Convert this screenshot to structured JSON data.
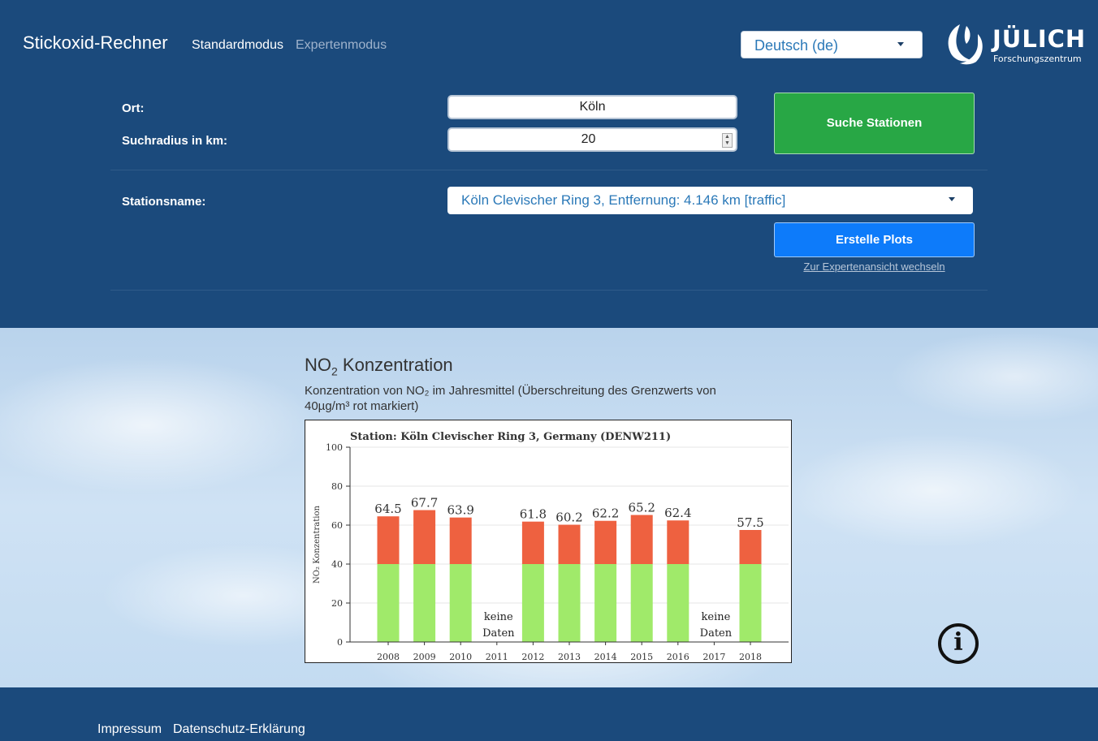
{
  "header": {
    "brand": "Stickoxid-Rechner",
    "nav": {
      "standard": "Standardmodus",
      "expert": "Expertenmodus"
    },
    "language": "Deutsch (de)",
    "logo": {
      "name": "JÜLICH",
      "subtitle": "Forschungszentrum"
    }
  },
  "form": {
    "location_label": "Ort:",
    "location_value": "Köln",
    "radius_label": "Suchradius in km:",
    "radius_value": "20",
    "search_button": "Suche Stationen",
    "station_label": "Stationsname:",
    "station_value": "Köln Clevischer Ring 3, Entfernung: 4.146 km [traffic]",
    "plot_button": "Erstelle Plots",
    "expert_link": "Zur Expertenansicht wechseln"
  },
  "section": {
    "title_main": "NO",
    "title_sub": "2",
    "title_rest": " Konzentration",
    "description": "Konzentration von NO₂ im Jahresmittel (Überschreitung des Grenzwerts von 40µg/m³ rot markiert)"
  },
  "chart_data": {
    "type": "bar",
    "title": "Station: Köln Clevischer Ring 3, Germany (DENW211)",
    "ylabel": "NO₂ Konzentration",
    "xlabel": "",
    "ylim": [
      0,
      100
    ],
    "yticks": [
      0,
      20,
      40,
      60,
      80,
      100
    ],
    "threshold": 40,
    "categories": [
      "2008",
      "2009",
      "2010",
      "2011",
      "2012",
      "2013",
      "2014",
      "2015",
      "2016",
      "2017",
      "2018"
    ],
    "values": [
      64.5,
      67.7,
      63.9,
      null,
      61.8,
      60.2,
      62.2,
      65.2,
      62.4,
      null,
      57.5
    ],
    "value_labels": [
      "64.5",
      "67.7",
      "63.9",
      "",
      "61.8",
      "60.2",
      "62.2",
      "65.2",
      "62.4",
      "",
      "57.5"
    ],
    "no_data_label": [
      "keine",
      "Daten"
    ],
    "colors": {
      "below": "#a0ea6a",
      "above": "#ee6140"
    },
    "grid": true
  },
  "footer": {
    "impressum": "Impressum",
    "privacy": "Datenschutz-Erklärung"
  }
}
